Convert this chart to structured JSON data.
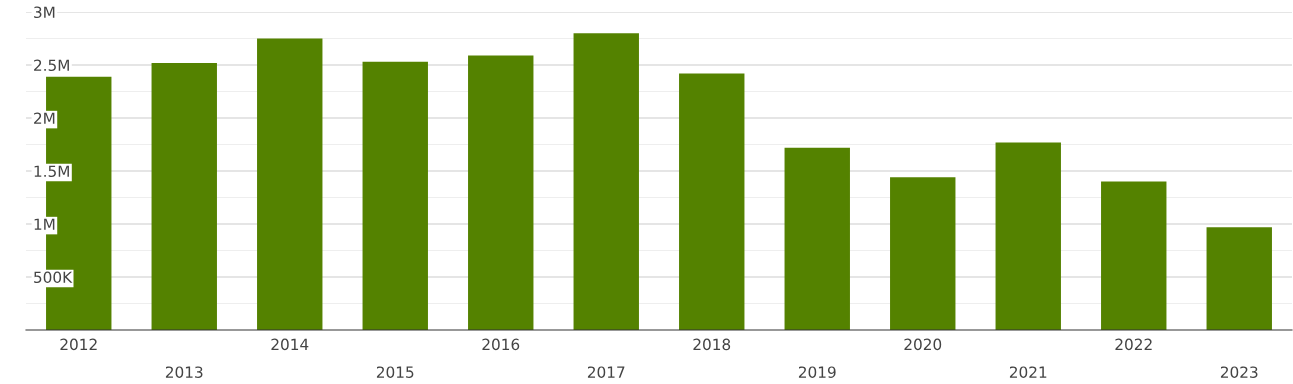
{
  "chart_data": {
    "type": "bar",
    "categories": [
      "2012",
      "2013",
      "2014",
      "2015",
      "2016",
      "2017",
      "2018",
      "2019",
      "2020",
      "2021",
      "2022",
      "2023"
    ],
    "values": [
      2390000,
      2520000,
      2750000,
      2530000,
      2590000,
      2800000,
      2420000,
      1720000,
      1440000,
      1770000,
      1400000,
      970000
    ],
    "color": "#548200",
    "ylim": [
      0,
      3000000
    ],
    "yticks": [
      {
        "value": 250000,
        "label": null
      },
      {
        "value": 500000,
        "label": "500K"
      },
      {
        "value": 750000,
        "label": null
      },
      {
        "value": 1000000,
        "label": "1M"
      },
      {
        "value": 1250000,
        "label": null
      },
      {
        "value": 1500000,
        "label": "1.5M"
      },
      {
        "value": 1750000,
        "label": null
      },
      {
        "value": 2000000,
        "label": "2M"
      },
      {
        "value": 2250000,
        "label": null
      },
      {
        "value": 2500000,
        "label": "2.5M"
      },
      {
        "value": 2750000,
        "label": null
      },
      {
        "value": 3000000,
        "label": "3M"
      }
    ],
    "grid": "y"
  }
}
